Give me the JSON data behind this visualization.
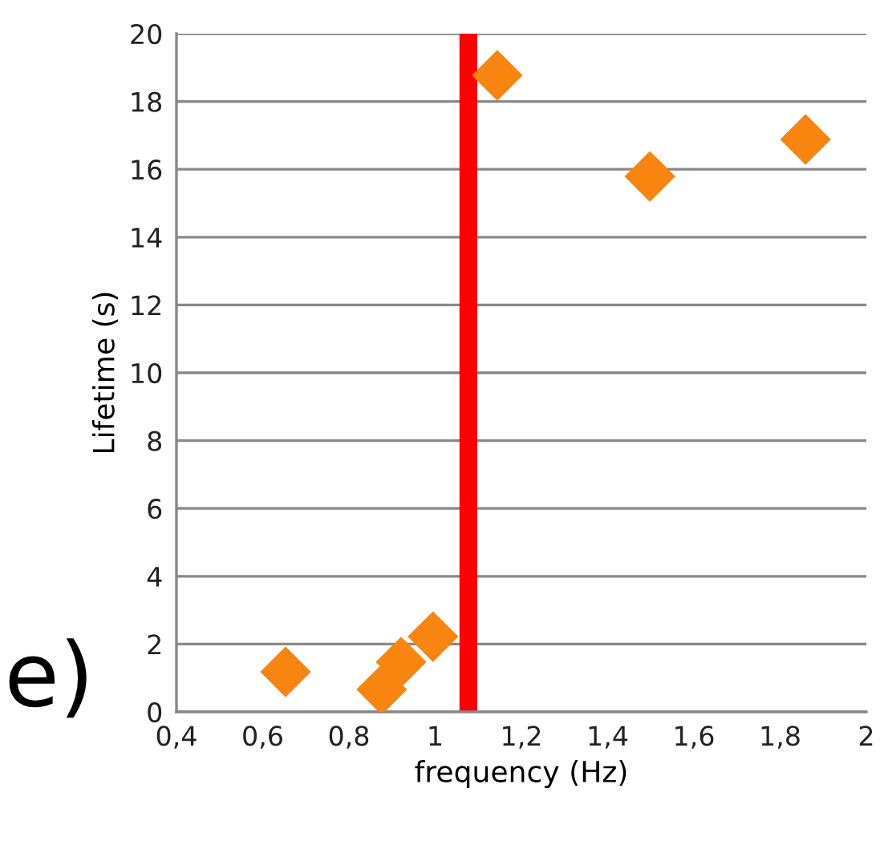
{
  "chart_data": {
    "type": "scatter",
    "xlabel": "frequency (Hz)",
    "ylabel": "Lifetime (s)",
    "x": [
      0.653,
      0.876,
      0.921,
      0.995,
      1.144,
      1.498,
      1.859
    ],
    "series": [
      {
        "color": "#f7850f",
        "values": [
          1.18,
          0.66,
          1.47,
          2.22,
          18.77,
          15.79,
          16.88
        ]
      }
    ],
    "xlim": [
      0.4,
      2
    ],
    "ylim": [
      0,
      20
    ],
    "xticks": [
      {
        "value": 0.4,
        "label": "0,4"
      },
      {
        "value": 0.6,
        "label": "0,6"
      },
      {
        "value": 0.8,
        "label": "0,8"
      },
      1,
      {
        "value": 1.2,
        "label": "1,2"
      },
      {
        "value": 1.4,
        "label": "1,4"
      },
      {
        "value": 1.6,
        "label": "1,6"
      },
      {
        "value": 1.8,
        "label": "1,8"
      },
      2
    ],
    "yticks": [
      0,
      2,
      4,
      6,
      8,
      10,
      12,
      14,
      16,
      18,
      20
    ],
    "grid": "y",
    "marker": "diamond",
    "ref_lines": [
      {
        "axis": "x",
        "value": 1.077,
        "color": "#ff0000",
        "line_style": "solid"
      }
    ],
    "annotations": [
      "e)"
    ]
  }
}
